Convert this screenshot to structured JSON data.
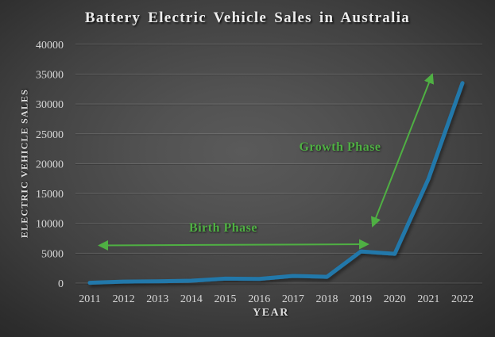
{
  "slide": {
    "title": "Battery Electric Vehicle Sales in Australia"
  },
  "chart_data": {
    "type": "line",
    "title": "Battery Electric Vehicle Sales in Australia",
    "xlabel": "YEAR",
    "ylabel": "ELECTRIC VEHICLE SALES",
    "categories": [
      "2011",
      "2012",
      "2013",
      "2014",
      "2015",
      "2016",
      "2017",
      "2018",
      "2019",
      "2020",
      "2021",
      "2022"
    ],
    "series": [
      {
        "name": "Battery electric vehicle sales",
        "values": [
          50,
          250,
          300,
          400,
          750,
          700,
          1200,
          1050,
          5300,
          4900,
          17500,
          33500
        ]
      }
    ],
    "ylim": [
      0,
      40000
    ],
    "ytick_step": 5000,
    "yticks": [
      0,
      5000,
      10000,
      15000,
      20000,
      25000,
      30000,
      35000,
      40000
    ],
    "grid": true,
    "legend_position": "none",
    "line_color": "#2478aa",
    "annotations": [
      {
        "id": "birth",
        "label": "Birth Phase",
        "color": "#4fb043",
        "arrow": "horizontal double-headed arrow spanning 2011 to 2019 at about y = 6400"
      },
      {
        "id": "growth",
        "label": "Growth Phase",
        "color": "#4fb043",
        "arrow": "diagonal double-headed arrow from about (2019.3, 8600) up to (2021.2, 35700)"
      }
    ]
  },
  "colors": {
    "background_center": "#585858",
    "background_edge": "#232323",
    "text": "#e6e6e6",
    "tick_text": "#d6d6d6",
    "grid": "rgba(255,255,255,0.16)",
    "grid_shadow": "rgba(0,0,0,0.22)",
    "line": "#2478aa",
    "annotation_green": "#4fb043"
  }
}
